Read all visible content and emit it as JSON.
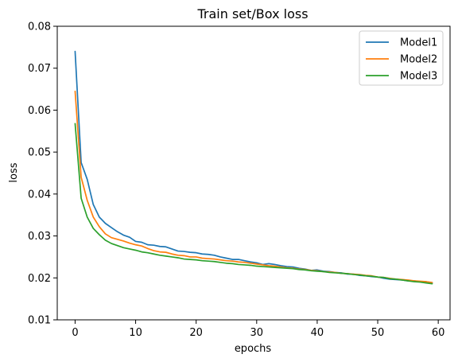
{
  "chart_data": {
    "type": "line",
    "title": "Train set/Box loss",
    "xlabel": "epochs",
    "ylabel": "loss",
    "xlim": [
      -2.95,
      61.95
    ],
    "ylim": [
      0.01,
      0.08
    ],
    "xticks": [
      0,
      10,
      20,
      30,
      40,
      50,
      60
    ],
    "yticks": [
      0.01,
      0.02,
      0.03,
      0.04,
      0.05,
      0.06,
      0.07,
      0.08
    ],
    "grid": false,
    "legend_position": "top-right",
    "series": [
      {
        "name": "Model1",
        "color": "#1f77b4",
        "x": [
          0,
          1,
          2,
          3,
          4,
          5,
          6,
          7,
          8,
          9,
          10,
          11,
          12,
          13,
          14,
          15,
          16,
          17,
          18,
          19,
          20,
          21,
          22,
          23,
          24,
          25,
          26,
          27,
          28,
          29,
          30,
          31,
          32,
          33,
          34,
          35,
          36,
          37,
          38,
          39,
          40,
          41,
          42,
          43,
          44,
          45,
          46,
          47,
          48,
          49,
          50,
          51,
          52,
          53,
          54,
          55,
          56,
          57,
          58,
          59
        ],
        "values": [
          0.074,
          0.0475,
          0.0435,
          0.0375,
          0.0345,
          0.033,
          0.032,
          0.031,
          0.0302,
          0.0297,
          0.0287,
          0.0285,
          0.0279,
          0.0278,
          0.0275,
          0.0274,
          0.0269,
          0.0264,
          0.0263,
          0.0261,
          0.026,
          0.0257,
          0.0256,
          0.0254,
          0.025,
          0.0247,
          0.0244,
          0.0244,
          0.0241,
          0.0238,
          0.0236,
          0.0232,
          0.0234,
          0.0232,
          0.0229,
          0.0227,
          0.0226,
          0.0223,
          0.0221,
          0.0218,
          0.0219,
          0.0216,
          0.0215,
          0.0213,
          0.0212,
          0.0209,
          0.0209,
          0.0206,
          0.0205,
          0.0203,
          0.0202,
          0.0199,
          0.0197,
          0.0196,
          0.0195,
          0.0193,
          0.0193,
          0.0191,
          0.0191,
          0.0188
        ]
      },
      {
        "name": "Model2",
        "color": "#ff7f0e",
        "x": [
          0,
          1,
          2,
          3,
          4,
          5,
          6,
          7,
          8,
          9,
          10,
          11,
          12,
          13,
          14,
          15,
          16,
          17,
          18,
          19,
          20,
          21,
          22,
          23,
          24,
          25,
          26,
          27,
          28,
          29,
          30,
          31,
          32,
          33,
          34,
          35,
          36,
          37,
          38,
          39,
          40,
          41,
          42,
          43,
          44,
          45,
          46,
          47,
          48,
          49,
          50,
          51,
          52,
          53,
          54,
          55,
          56,
          57,
          58,
          59
        ],
        "values": [
          0.0645,
          0.044,
          0.0385,
          0.0345,
          0.0322,
          0.0305,
          0.0296,
          0.0292,
          0.0288,
          0.0283,
          0.0279,
          0.0276,
          0.027,
          0.0265,
          0.0262,
          0.0261,
          0.0257,
          0.0254,
          0.0253,
          0.025,
          0.025,
          0.0247,
          0.0246,
          0.0245,
          0.0243,
          0.0241,
          0.024,
          0.0238,
          0.0237,
          0.0235,
          0.0233,
          0.0231,
          0.0229,
          0.0228,
          0.0226,
          0.0224,
          0.0223,
          0.0221,
          0.022,
          0.0218,
          0.0217,
          0.0215,
          0.0214,
          0.0213,
          0.0211,
          0.021,
          0.0209,
          0.0208,
          0.0206,
          0.0205,
          0.0202,
          0.0201,
          0.0199,
          0.0197,
          0.0196,
          0.0195,
          0.0193,
          0.0192,
          0.0191,
          0.0189
        ]
      },
      {
        "name": "Model3",
        "color": "#2ca02c",
        "x": [
          0,
          1,
          2,
          3,
          4,
          5,
          6,
          7,
          8,
          9,
          10,
          11,
          12,
          13,
          14,
          15,
          16,
          17,
          18,
          19,
          20,
          21,
          22,
          23,
          24,
          25,
          26,
          27,
          28,
          29,
          30,
          31,
          32,
          33,
          34,
          35,
          36,
          37,
          38,
          39,
          40,
          41,
          42,
          43,
          44,
          45,
          46,
          47,
          48,
          49,
          50,
          51,
          52,
          53,
          54,
          55,
          56,
          57,
          58,
          59
        ],
        "values": [
          0.0568,
          0.039,
          0.0345,
          0.0318,
          0.0303,
          0.029,
          0.0282,
          0.0277,
          0.0272,
          0.0269,
          0.0266,
          0.0262,
          0.026,
          0.0257,
          0.0254,
          0.0252,
          0.025,
          0.0248,
          0.0245,
          0.0244,
          0.0243,
          0.0241,
          0.024,
          0.0239,
          0.0237,
          0.0235,
          0.0234,
          0.0232,
          0.0231,
          0.023,
          0.0228,
          0.0227,
          0.0226,
          0.0225,
          0.0224,
          0.0223,
          0.0222,
          0.022,
          0.0219,
          0.0217,
          0.0216,
          0.0215,
          0.0213,
          0.0212,
          0.0211,
          0.021,
          0.0208,
          0.0207,
          0.0205,
          0.0204,
          0.0202,
          0.0201,
          0.0198,
          0.0197,
          0.0195,
          0.0193,
          0.0191,
          0.019,
          0.0188,
          0.0186
        ]
      }
    ]
  }
}
